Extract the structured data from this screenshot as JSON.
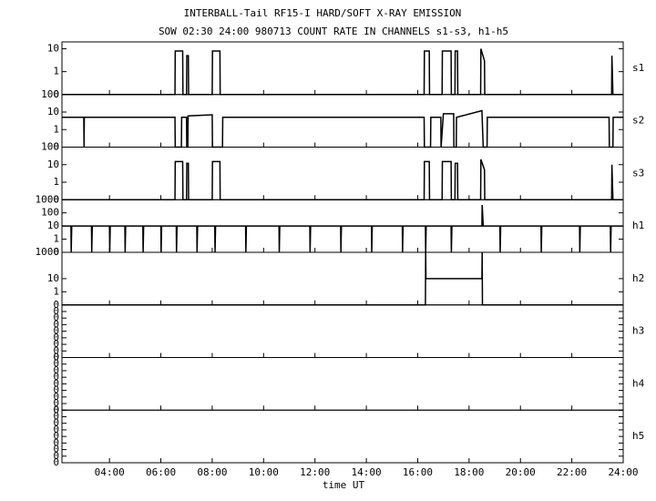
{
  "chart_data": {
    "type": "line",
    "title": "INTERBALL-Tail RF15-I HARD/SOFT X-RAY EMISSION",
    "subtitle": "SOW 02:30 24:00 980713  COUNT RATE IN CHANNELS s1-s3, h1-h5",
    "xlabel": "time UT",
    "color": "#000000",
    "xlim": [
      2.15,
      24
    ],
    "xticks": [
      {
        "value": 4,
        "label": "04:00"
      },
      {
        "value": 6,
        "label": "06:00"
      },
      {
        "value": 8,
        "label": "08:00"
      },
      {
        "value": 10,
        "label": "10:00"
      },
      {
        "value": 12,
        "label": "12:00"
      },
      {
        "value": 14,
        "label": "14:00"
      },
      {
        "value": 16,
        "label": "16:00"
      },
      {
        "value": 18,
        "label": "18:00"
      },
      {
        "value": 20,
        "label": "20:00"
      },
      {
        "value": 22,
        "label": "22:00"
      },
      {
        "value": 24,
        "label": "24:00"
      }
    ],
    "panels": [
      {
        "name": "s1",
        "log": true,
        "ylim": [
          0.1,
          20
        ],
        "yticks": [
          {
            "value": 0.1,
            "label": "0"
          },
          1,
          10
        ],
        "x": [
          2.15,
          6.55,
          6.56,
          6.85,
          6.86,
          7.0,
          7.01,
          7.07,
          7.08,
          8.0,
          8.01,
          8.3,
          8.31,
          16.25,
          16.26,
          16.45,
          16.46,
          16.95,
          16.96,
          17.3,
          17.31,
          17.45,
          17.46,
          17.55,
          17.56,
          18.45,
          18.46,
          18.6,
          18.61,
          23.55,
          23.56,
          23.6,
          24
        ],
        "values": [
          0.1,
          0.1,
          8,
          8,
          0.1,
          0.1,
          5,
          5,
          0.1,
          0.1,
          8,
          8,
          0.1,
          0.1,
          8,
          8,
          0.1,
          0.1,
          8,
          8,
          0.1,
          0.1,
          8,
          8,
          0.1,
          0.1,
          10,
          3,
          0.1,
          0.1,
          5,
          0.1,
          0.1
        ]
      },
      {
        "name": "s2",
        "log": true,
        "ylim": [
          0.1,
          100
        ],
        "yticks": [
          {
            "value": 0.1,
            "label": "0"
          },
          1,
          10,
          100
        ],
        "x": [
          2.15,
          3.0,
          3.01,
          3.02,
          6.55,
          6.56,
          6.8,
          6.81,
          7.0,
          7.01,
          7.05,
          7.06,
          8.0,
          8.01,
          8.4,
          8.41,
          9.0,
          16.25,
          16.26,
          16.5,
          16.51,
          16.9,
          16.91,
          17.0,
          17.4,
          17.41,
          17.5,
          17.51,
          18.5,
          18.55,
          18.7,
          18.71,
          19,
          23.45,
          23.46,
          23.6,
          23.61,
          24
        ],
        "values": [
          5,
          5,
          0.1,
          5,
          5,
          0.1,
          0.1,
          5,
          5,
          0.1,
          0.1,
          6,
          7,
          0.1,
          0.1,
          5,
          5,
          5,
          0.1,
          0.1,
          5,
          5,
          0.1,
          8,
          8,
          0.1,
          0.1,
          5,
          12,
          0.1,
          0.1,
          5,
          5,
          5,
          0.1,
          0.1,
          5,
          5
        ]
      },
      {
        "name": "s3",
        "log": true,
        "ylim": [
          0.1,
          100
        ],
        "yticks": [
          {
            "value": 0.1,
            "label": "0"
          },
          1,
          10,
          100
        ],
        "x": [
          2.15,
          6.55,
          6.56,
          6.85,
          6.86,
          7.0,
          7.01,
          7.07,
          7.08,
          8.0,
          8.01,
          8.3,
          8.31,
          16.25,
          16.26,
          16.45,
          16.46,
          16.95,
          16.96,
          17.3,
          17.31,
          17.45,
          17.46,
          17.55,
          17.56,
          18.45,
          18.46,
          18.6,
          18.61,
          23.55,
          23.56,
          23.6,
          24
        ],
        "values": [
          0.1,
          0.1,
          15,
          15,
          0.1,
          0.1,
          12,
          12,
          0.1,
          0.1,
          15,
          15,
          0.1,
          0.1,
          15,
          15,
          0.1,
          0.1,
          15,
          15,
          0.1,
          0.1,
          12,
          12,
          0.1,
          0.1,
          20,
          5,
          0.1,
          0.1,
          10,
          0.1,
          0.1
        ]
      },
      {
        "name": "h1",
        "log": true,
        "ylim": [
          0.1,
          1000
        ],
        "yticks": [
          {
            "value": 0.1,
            "label": "0"
          },
          1,
          10,
          100,
          1000
        ],
        "x": [
          2.15,
          2.5,
          2.51,
          2.53,
          3.3,
          3.31,
          3.33,
          4.0,
          4.01,
          4.03,
          4.6,
          4.61,
          4.63,
          5.3,
          5.31,
          5.33,
          6.0,
          6.01,
          6.03,
          6.6,
          6.61,
          6.63,
          7.4,
          7.41,
          7.43,
          8.1,
          8.11,
          8.13,
          9.3,
          9.31,
          9.33,
          10.6,
          10.61,
          10.63,
          11.8,
          11.81,
          11.83,
          13.0,
          13.01,
          13.03,
          14.2,
          14.21,
          14.23,
          15.4,
          15.41,
          15.43,
          16.3,
          16.31,
          16.33,
          17.3,
          17.31,
          17.33,
          18.5,
          18.51,
          18.55,
          19.2,
          19.21,
          19.23,
          20.8,
          20.81,
          20.83,
          22.3,
          22.31,
          22.33,
          23.5,
          23.51,
          23.53,
          24
        ],
        "values": [
          10,
          10,
          0.1,
          10,
          10,
          0.1,
          10,
          10,
          0.1,
          10,
          10,
          0.1,
          10,
          10,
          0.1,
          10,
          10,
          0.1,
          10,
          10,
          0.1,
          10,
          10,
          0.1,
          10,
          10,
          0.1,
          10,
          10,
          0.1,
          10,
          10,
          0.1,
          10,
          10,
          0.1,
          10,
          10,
          0.1,
          10,
          10,
          0.1,
          10,
          10,
          0.1,
          10,
          10,
          0.1,
          10,
          10,
          0.1,
          10,
          10,
          400,
          10,
          10,
          0.1,
          10,
          10,
          0.1,
          10,
          10,
          0.1,
          10,
          10,
          0.1,
          10,
          10
        ]
      },
      {
        "name": "h2",
        "log": true,
        "ylim": [
          0.1,
          1000
        ],
        "yticks": [
          1,
          10,
          1000
        ],
        "x": [
          2.15,
          16.3,
          16.31,
          16.32,
          18.5,
          18.51,
          18.52,
          24
        ],
        "values": [
          0.1,
          0.1,
          1000,
          10,
          10,
          1000,
          0.1,
          0.1
        ]
      },
      {
        "name": "h3",
        "log": false,
        "ylim": [
          0,
          1
        ],
        "yticks": [
          0,
          {
            "value": 0.125,
            "label": "0"
          },
          {
            "value": 0.25,
            "label": "0"
          },
          {
            "value": 0.375,
            "label": "0"
          },
          {
            "value": 0.5,
            "label": "0"
          },
          {
            "value": 0.625,
            "label": "0"
          },
          {
            "value": 0.75,
            "label": "0"
          },
          {
            "value": 0.875,
            "label": "0"
          },
          {
            "value": 1,
            "label": "0"
          }
        ]
      },
      {
        "name": "h4",
        "log": false,
        "ylim": [
          0,
          1
        ],
        "yticks": [
          0,
          {
            "value": 0.125,
            "label": "0"
          },
          {
            "value": 0.25,
            "label": "0"
          },
          {
            "value": 0.375,
            "label": "0"
          },
          {
            "value": 0.5,
            "label": "0"
          },
          {
            "value": 0.625,
            "label": "0"
          },
          {
            "value": 0.75,
            "label": "0"
          },
          {
            "value": 0.875,
            "label": "0"
          },
          {
            "value": 1,
            "label": "0"
          }
        ]
      },
      {
        "name": "h5",
        "log": false,
        "ylim": [
          0,
          1
        ],
        "yticks": [
          0,
          {
            "value": 0.125,
            "label": "0"
          },
          {
            "value": 0.25,
            "label": "0"
          },
          {
            "value": 0.375,
            "label": "0"
          },
          {
            "value": 0.5,
            "label": "0"
          },
          {
            "value": 0.625,
            "label": "0"
          },
          {
            "value": 0.75,
            "label": "0"
          },
          {
            "value": 0.875,
            "label": "0"
          },
          {
            "value": 1,
            "label": "0"
          }
        ]
      }
    ]
  }
}
